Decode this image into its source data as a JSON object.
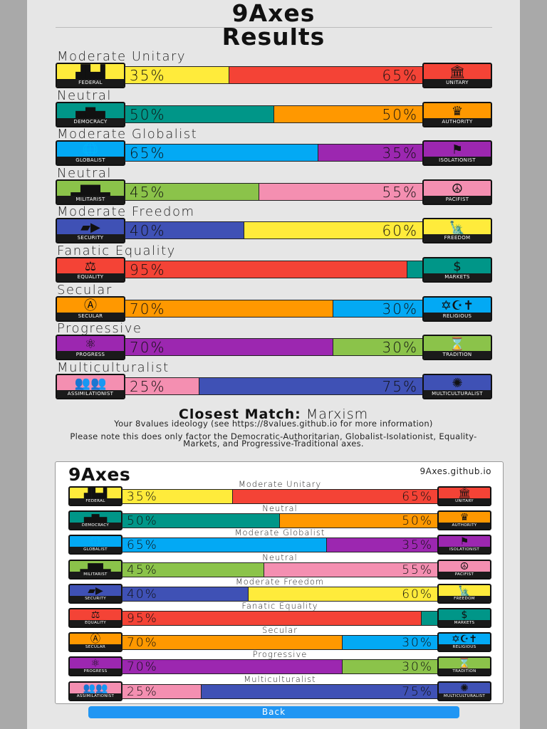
{
  "title_line1": "9Axes",
  "title_line2": "Results",
  "axes": [
    {
      "label": "Moderate Unitary",
      "left": {
        "name": "FEDERAL",
        "icon": "us-map-icon",
        "glyph": "▟▙▟",
        "color": "#ffeb3b"
      },
      "right": {
        "name": "UNITARY",
        "icon": "capitol-building-icon",
        "glyph": "🏛",
        "color": "#f44336"
      },
      "left_pct": "35%",
      "right_pct": "65%",
      "left_value": 35,
      "right_value": 65
    },
    {
      "label": "Neutral",
      "left": {
        "name": "DEMOCRACY",
        "icon": "ballot-box-icon",
        "glyph": "▄▆▄",
        "color": "#009688"
      },
      "right": {
        "name": "AUTHORITY",
        "icon": "crown-icon",
        "glyph": "♛",
        "color": "#ff9800"
      },
      "left_pct": "50%",
      "right_pct": "50%",
      "left_value": 50,
      "right_value": 50
    },
    {
      "label": "Moderate Globalist",
      "left": {
        "name": "GLOBALIST",
        "icon": "globe-icon",
        "glyph": "🌐",
        "color": "#03a9f4"
      },
      "right": {
        "name": "ISOLATIONIST",
        "icon": "flag-icon",
        "glyph": "⚑",
        "color": "#9c27b0"
      },
      "left_pct": "65%",
      "right_pct": "35%",
      "left_value": 65,
      "right_value": 35
    },
    {
      "label": "Neutral",
      "left": {
        "name": "MILITARIST",
        "icon": "tank-icon",
        "glyph": "▂▆▆▂",
        "color": "#8bc34a"
      },
      "right": {
        "name": "PACIFIST",
        "icon": "peace-sign-icon",
        "glyph": "☮",
        "color": "#f48fb1"
      },
      "left_pct": "45%",
      "right_pct": "55%",
      "left_value": 45,
      "right_value": 55
    },
    {
      "label": "Moderate Freedom",
      "left": {
        "name": "SECURITY",
        "icon": "security-camera-icon",
        "glyph": "▰▶",
        "color": "#3f51b5"
      },
      "right": {
        "name": "FREEDOM",
        "icon": "statue-of-liberty-icon",
        "glyph": "🗽",
        "color": "#ffeb3b"
      },
      "left_pct": "40%",
      "right_pct": "60%",
      "left_value": 40,
      "right_value": 60
    },
    {
      "label": "Fanatic Equality",
      "left": {
        "name": "EQUALITY",
        "icon": "scales-icon",
        "glyph": "⚖",
        "color": "#f44336"
      },
      "right": {
        "name": "MARKETS",
        "icon": "dollar-sign-icon",
        "glyph": "$",
        "color": "#009688"
      },
      "left_pct": "95%",
      "right_pct": "",
      "left_value": 95,
      "right_value": 5
    },
    {
      "label": "Secular",
      "left": {
        "name": "SECULAR",
        "icon": "atheism-symbol-icon",
        "glyph": "Ⓐ",
        "color": "#ff9800"
      },
      "right": {
        "name": "RELIGIOUS",
        "icon": "religious-symbols-icon",
        "glyph": "✡☪✝",
        "color": "#03a9f4"
      },
      "left_pct": "70%",
      "right_pct": "30%",
      "left_value": 70,
      "right_value": 30
    },
    {
      "label": "Progressive",
      "left": {
        "name": "PROGRESS",
        "icon": "atom-icon",
        "glyph": "⚛",
        "color": "#9c27b0"
      },
      "right": {
        "name": "TRADITION",
        "icon": "hourglass-icon",
        "glyph": "⌛",
        "color": "#8bc34a"
      },
      "left_pct": "70%",
      "right_pct": "30%",
      "left_value": 70,
      "right_value": 30
    },
    {
      "label": "Multiculturalist",
      "left": {
        "name": "ASSIMILATIONIST",
        "icon": "people-group-icon",
        "glyph": "👥👥",
        "color": "#f48fb1"
      },
      "right": {
        "name": "MULTICULTURALIST",
        "icon": "diverse-crowd-icon",
        "glyph": "✺",
        "color": "#3f51b5"
      },
      "left_pct": "25%",
      "right_pct": "75%",
      "left_value": 25,
      "right_value": 75
    }
  ],
  "closest_label": "Closest Match:",
  "closest_value": "Marxism",
  "note1": "Your 8values ideology (see https://8values.github.io for more information)",
  "note2": "Please note this does only factor the Democratic-Authoritarian, Globalist-Isolationist, Equality-Markets, and Progressive-Traditional axes.",
  "card_title": "9Axes",
  "card_url": "9Axes.github.io",
  "back_label": "Back"
}
